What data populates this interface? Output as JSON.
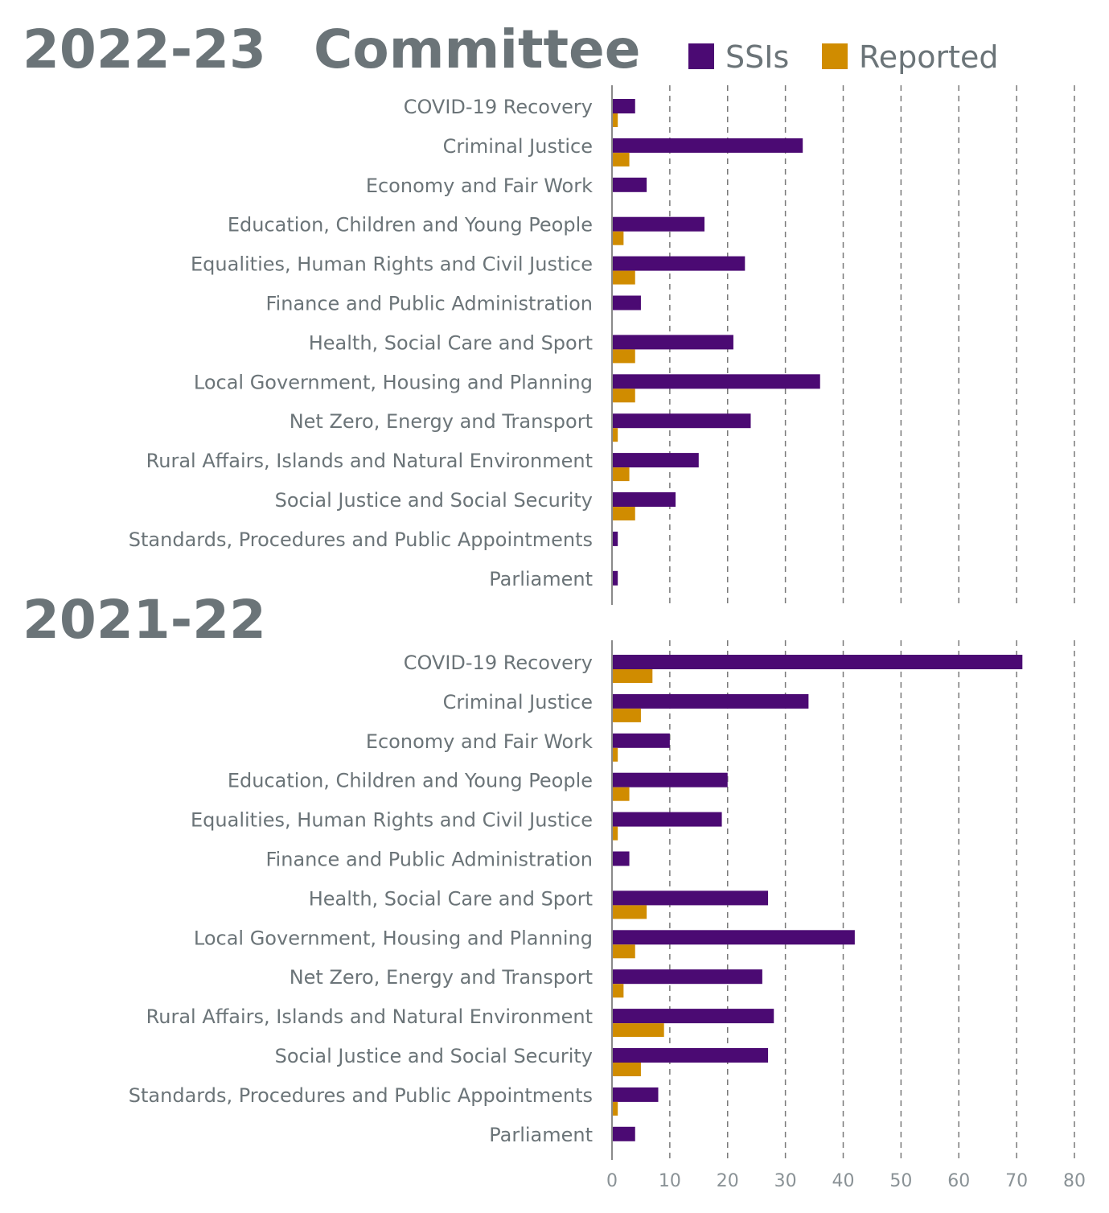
{
  "header": {
    "committee_label": "Committee"
  },
  "legend": {
    "items": [
      {
        "label": "SSIs",
        "color": "#4b0a73"
      },
      {
        "label": "Reported",
        "color": "#d08c00"
      }
    ]
  },
  "chart_data": {
    "type": "bar",
    "orientation": "horizontal",
    "xlim": [
      0,
      80
    ],
    "xticks": [
      "0",
      "10",
      "20",
      "30",
      "40",
      "50",
      "60",
      "70",
      "80"
    ],
    "grid": "vertical dashed",
    "legend_position": "top-right",
    "panels": [
      {
        "title": "2022-23",
        "categories": [
          "COVID-19 Recovery",
          "Criminal Justice",
          "Economy and Fair Work",
          "Education, Children and Young People",
          "Equalities, Human Rights and Civil Justice",
          "Finance and Public Administration",
          "Health, Social Care and Sport",
          "Local Government, Housing and Planning",
          "Net Zero, Energy and Transport",
          "Rural Affairs, Islands and Natural Environment",
          "Social Justice and Social Security",
          "Standards, Procedures and Public Appointments",
          "Parliament"
        ],
        "series": [
          {
            "name": "SSIs",
            "values": [
              4,
              33,
              6,
              16,
              23,
              5,
              21,
              36,
              24,
              15,
              11,
              1,
              1
            ]
          },
          {
            "name": "Reported",
            "values": [
              1,
              3,
              0,
              2,
              4,
              0,
              4,
              4,
              1,
              3,
              4,
              0,
              0
            ]
          }
        ]
      },
      {
        "title": "2021-22",
        "categories": [
          "COVID-19 Recovery",
          "Criminal Justice",
          "Economy and Fair Work",
          "Education, Children and Young People",
          "Equalities, Human Rights and Civil Justice",
          "Finance and Public Administration",
          "Health, Social Care and Sport",
          "Local Government, Housing and Planning",
          "Net Zero, Energy and Transport",
          "Rural Affairs, Islands and Natural Environment",
          "Social Justice and Social Security",
          "Standards, Procedures and Public Appointments",
          "Parliament"
        ],
        "series": [
          {
            "name": "SSIs",
            "values": [
              71,
              34,
              10,
              20,
              19,
              3,
              27,
              42,
              26,
              28,
              27,
              8,
              4
            ]
          },
          {
            "name": "Reported",
            "values": [
              7,
              5,
              1,
              3,
              1,
              0,
              6,
              4,
              2,
              9,
              5,
              1,
              0
            ]
          }
        ]
      }
    ]
  }
}
